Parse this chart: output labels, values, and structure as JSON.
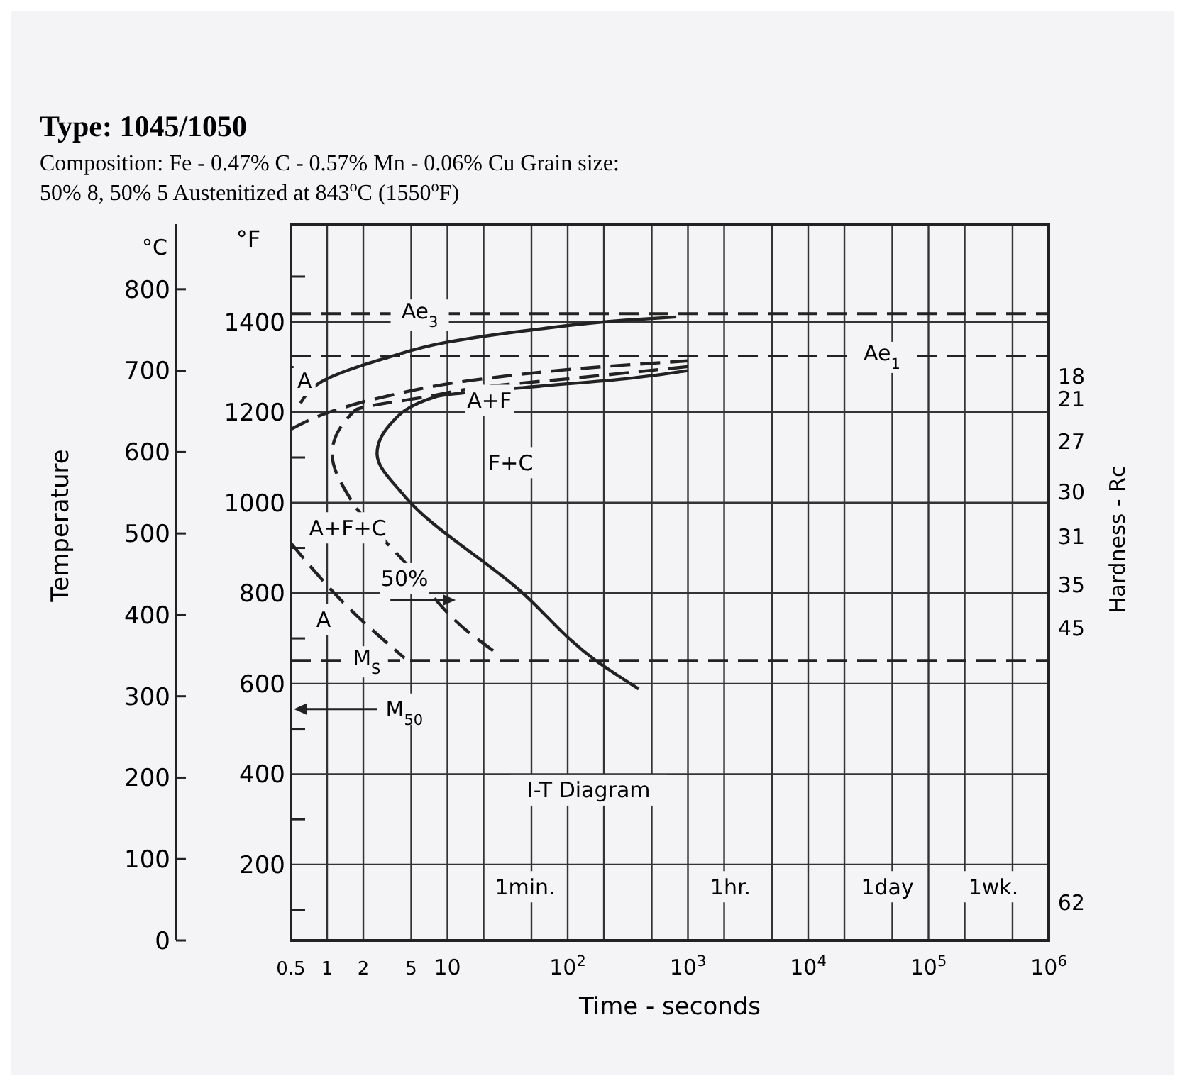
{
  "chart_data": {
    "type": "line",
    "title": "Type: 1045/1050",
    "subtitle": "Composition: Fe - 0.47% C - 0.57% Mn - 0.06% Cu Grain size: 50% 8, 50% 5 Austenitized at 843$^{o}$C (1550$^{o}$F)",
    "xlabel": "Time - seconds",
    "ylabel": "Temperature",
    "y2label": "°F",
    "log": "x",
    "grid": true,
    "marker": "none",
    "xlim": [
      0.5,
      1000000
    ],
    "xticks": [
      0.5,
      1,
      2,
      5,
      10,
      {
        "value": 20,
        "label": null
      },
      {
        "value": 50,
        "label": null
      },
      {
        "value": 100,
        "label": "10$^{2}$"
      },
      {
        "value": 200,
        "label": null
      },
      {
        "value": 500,
        "label": null
      },
      {
        "value": 1000,
        "label": "10$^{3}$"
      },
      {
        "value": 2000,
        "label": null
      },
      {
        "value": 5000,
        "label": null
      },
      {
        "value": 10000,
        "label": "10$^{4}$"
      },
      {
        "value": 20000,
        "label": null
      },
      {
        "value": 50000,
        "label": null
      },
      {
        "value": 100000,
        "label": "10$^{5}$"
      },
      {
        "value": 200000,
        "label": null
      },
      {
        "value": 500000,
        "label": null
      },
      {
        "value": 1000000,
        "label": "10$^{6}$"
      }
    ],
    "ylim": [
      0,
      880
    ],
    "yticks": [
      0,
      100,
      200,
      300,
      400,
      500,
      600,
      700,
      800
    ],
    "y2lim": [
      32,
      1616
    ],
    "y2ticks": [
      {
        "value": 100,
        "label": null
      },
      200,
      {
        "value": 300,
        "label": null
      },
      400,
      {
        "value": 500,
        "label": null
      },
      600,
      {
        "value": 700,
        "label": null
      },
      800,
      {
        "value": 900,
        "label": null
      },
      1000,
      {
        "value": 1100,
        "label": null
      },
      1200,
      {
        "value": 1300,
        "label": null
      },
      1400,
      {
        "value": 1500,
        "label": null
      }
    ],
    "series": [
      {
        "color": "#222222",
        "line_style": "solid",
        "x": [
          0.6,
          1,
          3,
          10,
          50,
          300,
          800
        ],
        "values": [
          660,
          690,
          715,
          735,
          750,
          762,
          766
        ]
      },
      {
        "color": "#222222",
        "line_style": "dashed",
        "x": [
          0.5,
          1,
          3,
          20,
          200,
          1000
        ],
        "values": [
          628,
          648,
          668,
          690,
          705,
          712
        ]
      },
      {
        "color": "#222222",
        "line_style": "dashed",
        "x": [
          0.5,
          1.6,
          4.4
        ],
        "values": [
          488,
          405,
          347
        ]
      },
      {
        "color": "#222222",
        "line_style": "dashed",
        "x": [
          1000,
          100,
          20,
          6.8,
          1.7,
          1.1,
          1.6,
          4.4,
          15.5,
          24
        ],
        "values": [
          705,
          690,
          680,
          668,
          651,
          598,
          540,
          465,
          377,
          356
        ]
      },
      {
        "color": "#222222",
        "line_style": "solid",
        "x": [
          1000,
          300,
          50,
          8,
          3.3,
          2.6,
          4.4,
          40,
          171,
          390
        ],
        "values": [
          700,
          690,
          680,
          668,
          633,
          598,
          546,
          430,
          344,
          309
        ]
      }
    ],
    "ref_lines": [
      {
        "axis": "y",
        "value": 770,
        "label": "Ae$_{3}$",
        "line_style": "dashed"
      },
      {
        "axis": "y",
        "value": 718,
        "label": "Ae$_{1}$",
        "line_style": "dashed"
      },
      {
        "axis": "y",
        "value": 344,
        "label": "M$_{S}$",
        "line_style": "dashed"
      }
    ],
    "annotations": [
      "°C",
      "A",
      "A+F",
      "F+C",
      "A+F+C",
      "A",
      "50%",
      "M$_{50}$",
      "I-T Diagram",
      "1min.",
      "1hr.",
      "1day",
      "1wk.",
      "18",
      "21",
      "27",
      "30",
      "31",
      "35",
      "45",
      "62",
      "Hardness - Rc"
    ]
  }
}
